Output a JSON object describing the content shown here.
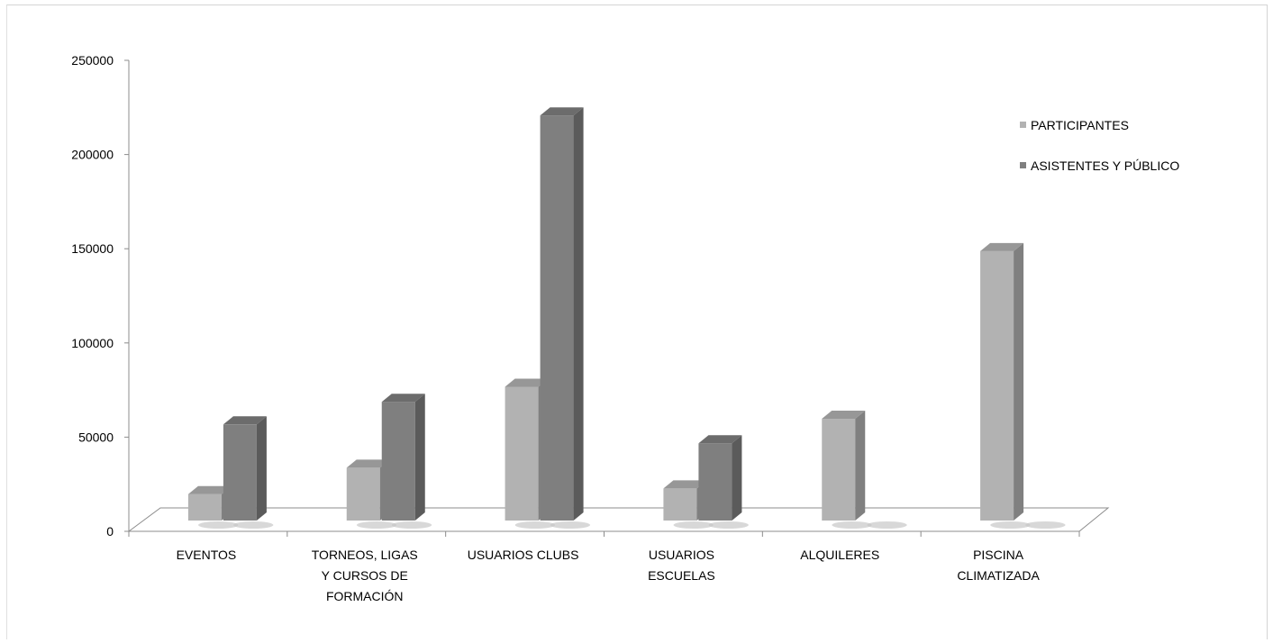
{
  "chart_data": {
    "type": "bar",
    "style": "3d-clustered-column",
    "categories": [
      [
        "EVENTOS"
      ],
      [
        "TORNEOS, LIGAS",
        "Y CURSOS DE",
        "FORMACIÓN"
      ],
      [
        "USUARIOS CLUBS"
      ],
      [
        "USUARIOS",
        "ESCUELAS"
      ],
      [
        "ALQUILERES"
      ],
      [
        "PISCINA",
        "CLIMATIZADA"
      ]
    ],
    "series": [
      {
        "name": "PARTICIPANTES",
        "color": "#b2b2b2",
        "values": [
          14000,
          28000,
          71000,
          17000,
          54000,
          143000
        ]
      },
      {
        "name": "ASISTENTES Y PÚBLICO",
        "color": "#7f7f7f",
        "values": [
          51000,
          63000,
          215000,
          41000,
          0,
          0
        ]
      }
    ],
    "y_ticks": [
      "0",
      "50000",
      "100000",
      "150000",
      "200000",
      "250000"
    ],
    "ylim": [
      0,
      250000
    ],
    "legend_position": "top-right",
    "grid": false
  }
}
